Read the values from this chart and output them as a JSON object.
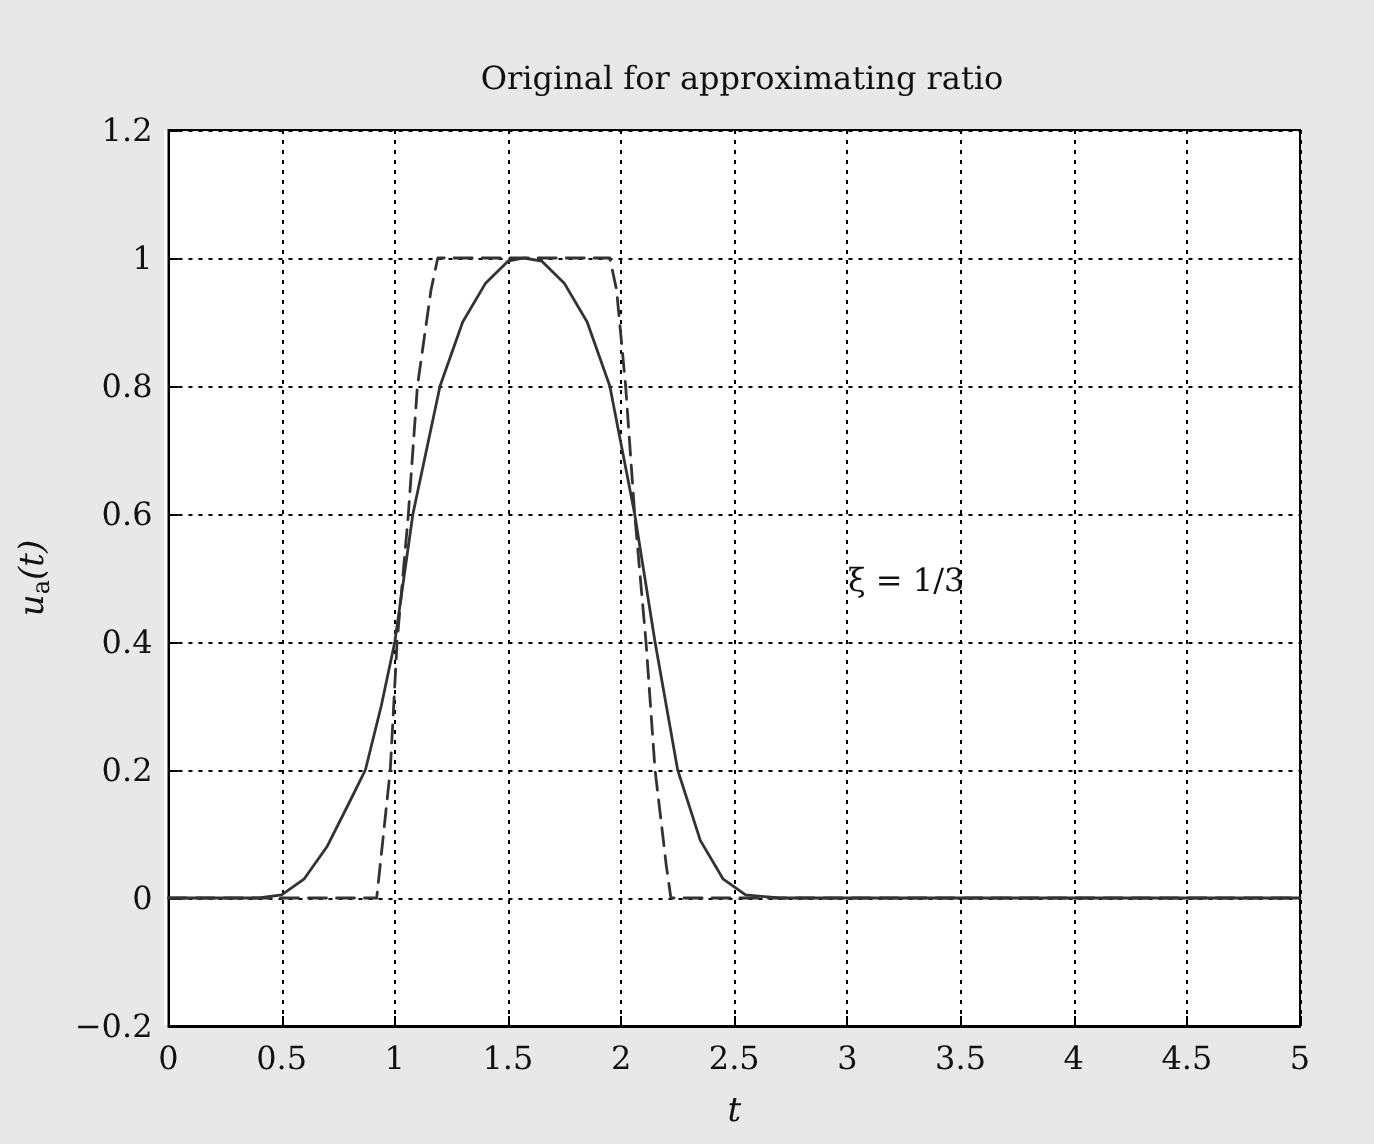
{
  "chart_data": {
    "type": "line",
    "title": "Original for approximating ratio",
    "xlabel": "t",
    "ylabel": "u$_{a}$(t)",
    "annotations": [
      "ξ = 1/3"
    ],
    "series": [
      {
        "color": "#333333",
        "line_style": "solid",
        "x": [
          0,
          0.4,
          0.5,
          0.6,
          0.7,
          0.8,
          0.87,
          0.94,
          1.0,
          1.08,
          1.2,
          1.3,
          1.4,
          1.5,
          1.57,
          1.65,
          1.75,
          1.85,
          1.95,
          2.06,
          2.15,
          2.25,
          2.35,
          2.45,
          2.55,
          2.7,
          5
        ],
        "values": [
          0,
          0,
          0.005,
          0.03,
          0.08,
          0.15,
          0.2,
          0.3,
          0.4,
          0.6,
          0.8,
          0.9,
          0.96,
          0.995,
          1,
          0.995,
          0.96,
          0.9,
          0.8,
          0.6,
          0.4,
          0.2,
          0.09,
          0.03,
          0.005,
          0,
          0
        ]
      },
      {
        "color": "#333333",
        "line_style": "dashed",
        "x": [
          0,
          0.92,
          0.98,
          1.01,
          1.06,
          1.1,
          1.16,
          1.19,
          1.95,
          1.98,
          2.02,
          2.06,
          2.11,
          2.15,
          2.2,
          2.22,
          5
        ],
        "values": [
          0,
          0,
          0.2,
          0.4,
          0.6,
          0.8,
          0.95,
          1,
          1,
          0.95,
          0.8,
          0.6,
          0.4,
          0.2,
          0.05,
          0,
          0
        ]
      }
    ],
    "xlim": [
      0,
      5
    ],
    "xticks": [
      0,
      0.5,
      1,
      1.5,
      2,
      2.5,
      3,
      3.5,
      4,
      4.5,
      5
    ],
    "ylim": [
      -0.2,
      1.2
    ],
    "yticks": [
      {
        "value": -0.2,
        "label": "−0.2"
      },
      0,
      0.2,
      0.4,
      0.6,
      0.8,
      1,
      1.2
    ],
    "grid": true,
    "marker": "none"
  }
}
